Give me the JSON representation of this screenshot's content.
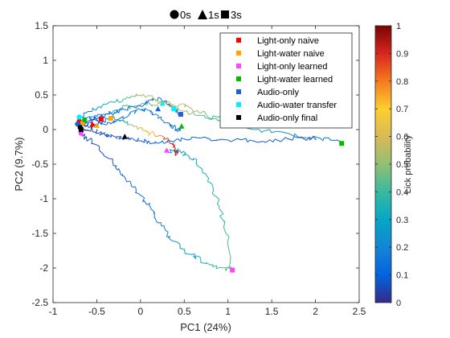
{
  "chart_data": {
    "type": "line",
    "title_parts": [
      "0s",
      "1s",
      "3s"
    ],
    "title_markers": [
      "circle",
      "triangle",
      "square"
    ],
    "xlabel": "PC1 (24%)",
    "ylabel": "PC2 (9.7%)",
    "xlim": [
      -1,
      2.5
    ],
    "ylim": [
      -2.5,
      1.5
    ],
    "xticks": [
      "-1",
      "-0.5",
      "0",
      "0.5",
      "1",
      "1.5",
      "2",
      "2.5"
    ],
    "yticks": [
      "1.5",
      "1",
      "0.5",
      "0",
      "-0.5",
      "-1",
      "-1.5",
      "-2",
      "-2.5"
    ],
    "colorbar": {
      "label": "Lick probability",
      "range": [
        0,
        1
      ],
      "ticks": [
        "1",
        "0.9",
        "0.8",
        "0.7",
        "0.6",
        "0.5",
        "0.4",
        "0.3",
        "0.2",
        "0.1",
        "0"
      ]
    },
    "legend_position": "top-right",
    "series": [
      {
        "name": "Light-only naive",
        "color": "#ff0000",
        "points": [
          [
            -0.7,
            0.12
          ],
          [
            -0.62,
            0.06
          ],
          [
            -0.5,
            0.14
          ],
          [
            -0.38,
            0.08
          ],
          [
            -0.25,
            0.15
          ],
          [
            -0.12,
            0.22
          ],
          [
            0.02,
            0.3
          ],
          [
            0.14,
            0.25
          ],
          [
            0.3,
            0.1
          ],
          [
            0.4,
            0.02
          ],
          [
            0.46,
            -0.02
          ]
        ],
        "lick": [
          0.05,
          0.05,
          0.08,
          0.1,
          0.12,
          0.15,
          0.2,
          0.18,
          0.14,
          0.12,
          0.1
        ],
        "markers": {
          "0s": [
            -0.7,
            0.12
          ],
          "1s": [
            -0.55,
            0.08
          ],
          "3s": [
            -0.45,
            0.15
          ]
        }
      },
      {
        "name": "Light-water naive",
        "color": "#ffa500",
        "points": [
          [
            -0.66,
            0.1
          ],
          [
            -0.55,
            0.03
          ],
          [
            -0.42,
            0.12
          ],
          [
            -0.3,
            0.18
          ],
          [
            -0.18,
            0.1
          ],
          [
            -0.05,
            0.05
          ],
          [
            0.1,
            -0.05
          ],
          [
            0.25,
            -0.1
          ],
          [
            0.36,
            -0.2
          ],
          [
            0.42,
            -0.35
          ],
          [
            0.38,
            -0.3
          ]
        ],
        "lick": [
          0.05,
          0.05,
          0.1,
          0.2,
          0.35,
          0.55,
          0.7,
          0.8,
          0.9,
          0.95,
          0.9
        ],
        "markers": {
          "0s": [
            -0.66,
            0.1
          ],
          "1s": [
            -0.5,
            0.06
          ],
          "3s": [
            -0.34,
            0.16
          ]
        }
      },
      {
        "name": "Light-only learned",
        "color": "#ff44ff",
        "points": [
          [
            -0.68,
            -0.05
          ],
          [
            -0.55,
            -0.2
          ],
          [
            -0.35,
            -0.42
          ],
          [
            -0.2,
            -0.65
          ],
          [
            -0.05,
            -0.9
          ],
          [
            0.1,
            -1.1
          ],
          [
            0.2,
            -1.35
          ],
          [
            0.35,
            -1.6
          ],
          [
            0.55,
            -1.8
          ],
          [
            0.75,
            -1.92
          ],
          [
            0.95,
            -2.0
          ],
          [
            1.05,
            -2.03
          ],
          [
            1.0,
            -1.6
          ],
          [
            0.9,
            -1.1
          ],
          [
            0.78,
            -0.7
          ],
          [
            0.6,
            -0.42
          ],
          [
            0.45,
            -0.3
          ],
          [
            0.3,
            -0.3
          ]
        ],
        "lick": [
          0.05,
          0.06,
          0.08,
          0.1,
          0.12,
          0.14,
          0.16,
          0.2,
          0.28,
          0.36,
          0.42,
          0.45,
          0.42,
          0.38,
          0.34,
          0.3,
          0.28,
          0.25
        ],
        "markers": {
          "0s": [
            -0.68,
            -0.05
          ],
          "1s": [
            0.3,
            -0.3
          ],
          "3s": [
            1.05,
            -2.03
          ]
        }
      },
      {
        "name": "Light-water learned",
        "color": "#00bb00",
        "points": [
          [
            -0.64,
            0.14
          ],
          [
            -0.5,
            0.2
          ],
          [
            -0.3,
            0.28
          ],
          [
            -0.05,
            0.34
          ],
          [
            0.2,
            0.38
          ],
          [
            0.45,
            0.36
          ],
          [
            0.7,
            0.25
          ],
          [
            0.95,
            0.12
          ],
          [
            1.3,
            0.0
          ],
          [
            1.7,
            -0.06
          ],
          [
            2.05,
            -0.12
          ],
          [
            2.3,
            -0.2
          ]
        ],
        "lick": [
          0.1,
          0.2,
          0.3,
          0.4,
          0.5,
          0.55,
          0.5,
          0.4,
          0.3,
          0.22,
          0.15,
          0.1
        ],
        "markers": {
          "0s": [
            -0.64,
            0.14
          ],
          "1s": [
            0.47,
            0.05
          ],
          "3s": [
            2.3,
            -0.2
          ]
        }
      },
      {
        "name": "Audio-only",
        "color": "#1f5fd0",
        "points": [
          [
            -0.72,
            0.08
          ],
          [
            -0.6,
            0.12
          ],
          [
            -0.45,
            0.18
          ],
          [
            -0.3,
            0.24
          ],
          [
            -0.15,
            0.3
          ],
          [
            0.05,
            0.38
          ],
          [
            0.2,
            0.45
          ],
          [
            0.32,
            0.36
          ],
          [
            0.4,
            0.28
          ],
          [
            0.46,
            0.22
          ]
        ],
        "lick": [
          0.05,
          0.06,
          0.08,
          0.1,
          0.12,
          0.14,
          0.16,
          0.15,
          0.13,
          0.12
        ],
        "markers": {
          "0s": [
            -0.72,
            0.08
          ],
          "1s": [
            0.2,
            0.3
          ],
          "3s": [
            0.46,
            0.22
          ]
        }
      },
      {
        "name": "Audio-water transfer",
        "color": "#00eeff",
        "points": [
          [
            -0.7,
            0.18
          ],
          [
            -0.55,
            0.28
          ],
          [
            -0.4,
            0.36
          ],
          [
            -0.2,
            0.44
          ],
          [
            0.0,
            0.5
          ],
          [
            0.15,
            0.45
          ],
          [
            0.3,
            0.36
          ],
          [
            0.45,
            0.28
          ],
          [
            0.7,
            0.2
          ],
          [
            1.0,
            0.14
          ],
          [
            1.35,
            0.1
          ],
          [
            1.6,
            0.05
          ]
        ],
        "lick": [
          0.1,
          0.2,
          0.3,
          0.4,
          0.5,
          0.55,
          0.6,
          0.55,
          0.45,
          0.35,
          0.3,
          0.25
        ],
        "markers": {
          "0s": [
            -0.7,
            0.18
          ],
          "1s": [
            0.25,
            0.38
          ],
          "3s": [
            0.38,
            0.3
          ]
        }
      },
      {
        "name": "Audio-only final",
        "color": "#000000",
        "points": [
          [
            -0.69,
            0.03
          ],
          [
            -0.55,
            0.0
          ],
          [
            -0.42,
            -0.06
          ],
          [
            -0.3,
            -0.1
          ],
          [
            -0.15,
            -0.12
          ],
          [
            0.0,
            -0.16
          ],
          [
            0.2,
            -0.2
          ],
          [
            0.4,
            -0.15
          ],
          [
            0.7,
            -0.12
          ],
          [
            1.0,
            -0.15
          ],
          [
            1.4,
            -0.17
          ],
          [
            1.8,
            -0.12
          ],
          [
            2.0,
            -0.13
          ]
        ],
        "lick": [
          0.05,
          0.05,
          0.06,
          0.07,
          0.08,
          0.08,
          0.09,
          0.1,
          0.1,
          0.09,
          0.08,
          0.08,
          0.07
        ],
        "markers": {
          "0s": [
            -0.69,
            0.03
          ],
          "1s": [
            -0.18,
            -0.1
          ],
          "3s": [
            -0.68,
            0.0
          ]
        }
      }
    ]
  }
}
